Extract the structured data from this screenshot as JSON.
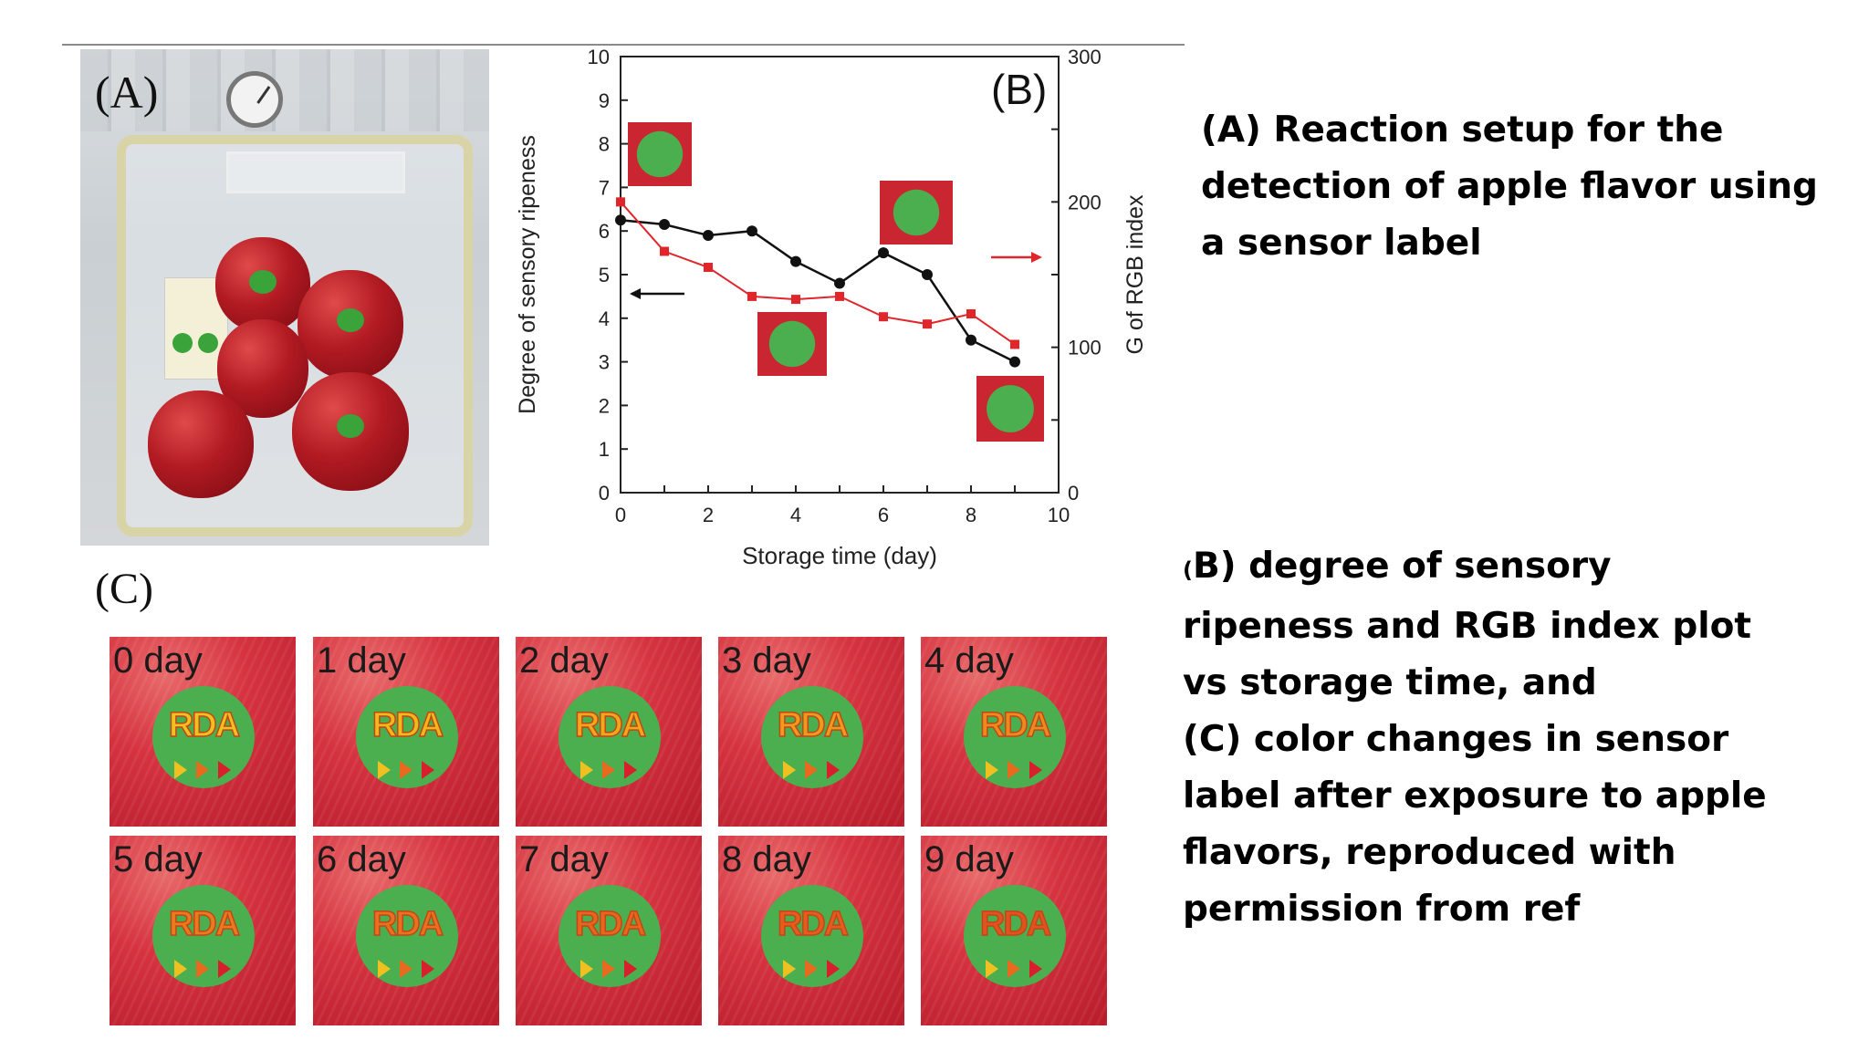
{
  "figure": {
    "panel_a_letter": "(A)",
    "panel_b_letter": "(B)",
    "panel_c_letter": "(C)"
  },
  "chart_data": {
    "type": "line",
    "xlabel": "Storage time (day)",
    "ylabel": "Degree of sensory ripeness",
    "y2label": "G of RGB index",
    "xlim": [
      0,
      10
    ],
    "ylim": [
      0,
      10
    ],
    "y2lim": [
      0,
      300
    ],
    "x_ticks": [
      "0",
      "2",
      "4",
      "6",
      "8",
      "10"
    ],
    "y_ticks": [
      "0",
      "1",
      "2",
      "3",
      "4",
      "5",
      "6",
      "7",
      "8",
      "9",
      "10"
    ],
    "y2_ticks": [
      "0",
      "100",
      "200",
      "300"
    ],
    "grid": false,
    "series": [
      {
        "axis": "left",
        "color": "#111111",
        "marker": "circle",
        "x": [
          0,
          1,
          2,
          3,
          4,
          5,
          6,
          7,
          8,
          9
        ],
        "values": [
          6.25,
          6.15,
          5.9,
          6.0,
          5.3,
          4.8,
          5.5,
          5.0,
          3.5,
          3.0
        ]
      },
      {
        "axis": "right",
        "color": "#e0262b",
        "marker": "square",
        "x": [
          0,
          1,
          2,
          3,
          4,
          5,
          6,
          7,
          8,
          9
        ],
        "values": [
          200,
          166,
          155,
          135,
          133,
          135,
          121,
          116,
          123,
          102
        ]
      }
    ]
  },
  "tiles": [
    {
      "day": "0 day",
      "rda_color": "#f0c020"
    },
    {
      "day": "1 day",
      "rda_color": "#f0b818"
    },
    {
      "day": "2 day",
      "rda_color": "#f0a81a"
    },
    {
      "day": "3 day",
      "rda_color": "#ee9a1c"
    },
    {
      "day": "4 day",
      "rda_color": "#ec8a1e"
    },
    {
      "day": "5 day",
      "rda_color": "#ea7a1e"
    },
    {
      "day": "6 day",
      "rda_color": "#e8701e"
    },
    {
      "day": "7 day",
      "rda_color": "#e6661e"
    },
    {
      "day": "8 day",
      "rda_color": "#e45c1e"
    },
    {
      "day": "9 day",
      "rda_color": "#e0521e"
    }
  ],
  "caption_a": {
    "line1": "(A) Reaction setup for the",
    "line2": "detection of apple flavor using",
    "line3": "a sensor label"
  },
  "caption_b": {
    "open_paren": "(",
    "line1_rest": "B) degree of sensory",
    "line2": "ripeness and RGB index plot",
    "line3": "vs storage time, and",
    "line4": "(C) color changes in sensor",
    "line5": "label after exposure to apple",
    "line6": "flavors, reproduced with",
    "line7": "permission from ref"
  }
}
